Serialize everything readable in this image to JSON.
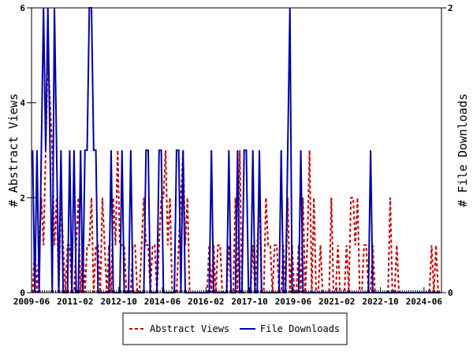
{
  "chart_data": {
    "type": "line",
    "y_left_label": "# Abstract Views",
    "y_right_label": "# File Downloads",
    "y_left_range": [
      0,
      6
    ],
    "y_right_range": [
      0,
      2
    ],
    "y_left_ticks": [
      "0",
      "2",
      "4",
      "6"
    ],
    "y_right_ticks": [
      "0",
      "2"
    ],
    "x_tick_labels": [
      "2009-06",
      "2011-02",
      "2012-10",
      "2014-06",
      "2016-02",
      "2017-10",
      "2019-06",
      "2021-02",
      "2022-10",
      "2024-06"
    ],
    "x_start": "2009-06",
    "months": 188,
    "legend_placement": "bottom",
    "series": [
      {
        "name": "Abstract Views",
        "color": "#cc0000",
        "style": "dashed",
        "axis": "left",
        "values": [
          0,
          1,
          0,
          1,
          2,
          1,
          3,
          5,
          4,
          3,
          1,
          2,
          0,
          2,
          1,
          0,
          1,
          1,
          0,
          0,
          1,
          2,
          0,
          1,
          0,
          1,
          1,
          2,
          0,
          1,
          1,
          0,
          2,
          1,
          0,
          1,
          0,
          2,
          1,
          3,
          1,
          1,
          1,
          0,
          0,
          0,
          1,
          1,
          0,
          0,
          1,
          2,
          1,
          1,
          0,
          1,
          1,
          0,
          1,
          2,
          2,
          3,
          1,
          2,
          0,
          0,
          0,
          1,
          2,
          3,
          1,
          2,
          0,
          0,
          0,
          0,
          0,
          0,
          0,
          0,
          0,
          1,
          0,
          1,
          0,
          1,
          1,
          0,
          0,
          0,
          1,
          0,
          0,
          2,
          0,
          3,
          0,
          0,
          0,
          0,
          0,
          1,
          0,
          1,
          2,
          0,
          0,
          2,
          1,
          1,
          0,
          1,
          1,
          0,
          0,
          1,
          0,
          2,
          0,
          1,
          0,
          0,
          1,
          0,
          2,
          0,
          1,
          3,
          0,
          2,
          0,
          0,
          1,
          0,
          0,
          0,
          0,
          2,
          0,
          0,
          1,
          0,
          0,
          0,
          1,
          0,
          2,
          2,
          1,
          2,
          0,
          0,
          1,
          1,
          0,
          0,
          1,
          0,
          0,
          0,
          0,
          0,
          0,
          0,
          2,
          0,
          0,
          1,
          0,
          0,
          0,
          0,
          0,
          0,
          0,
          0,
          0,
          0,
          0,
          0,
          0,
          0,
          0,
          1,
          0,
          1,
          0,
          0
        ]
      },
      {
        "name": "File Downloads",
        "color": "#0000aa",
        "style": "solid",
        "axis": "right",
        "values": [
          1,
          0,
          1,
          0,
          1,
          2,
          1,
          2,
          1,
          0,
          2,
          1,
          0,
          1,
          0,
          0,
          0,
          1,
          0,
          1,
          0,
          0,
          1,
          0,
          1,
          1,
          2,
          2,
          1,
          1,
          0,
          0,
          0,
          0,
          0,
          0,
          1,
          0,
          0,
          0,
          0,
          1,
          0,
          0,
          0,
          1,
          0,
          0,
          0,
          0,
          0,
          0,
          1,
          1,
          0,
          0,
          0,
          0,
          1,
          1,
          0,
          0,
          0,
          0,
          0,
          0,
          1,
          1,
          0,
          1,
          0,
          0,
          0,
          0,
          0,
          0,
          0,
          0,
          0,
          0,
          0,
          0,
          1,
          0,
          0,
          0,
          0,
          0,
          0,
          0,
          1,
          0,
          0,
          0,
          1,
          0,
          0,
          1,
          1,
          0,
          0,
          1,
          0,
          0,
          1,
          0,
          0,
          0,
          0,
          0,
          0,
          0,
          0,
          0,
          1,
          0,
          0,
          1,
          2,
          0,
          0,
          0,
          0,
          1,
          0,
          0,
          0,
          0,
          0,
          0,
          0,
          0,
          0,
          0,
          0,
          0,
          0,
          0,
          0,
          0,
          0,
          0,
          0,
          0,
          0,
          0,
          0,
          0,
          0,
          0,
          0,
          0,
          0,
          0,
          0,
          1,
          0,
          0,
          0,
          0,
          0,
          0,
          0,
          0,
          0,
          0,
          0,
          0,
          0,
          0,
          0,
          0,
          0,
          0,
          0,
          0,
          0,
          0,
          0,
          0,
          0,
          0,
          0,
          0,
          0,
          0,
          0,
          0
        ]
      }
    ]
  }
}
